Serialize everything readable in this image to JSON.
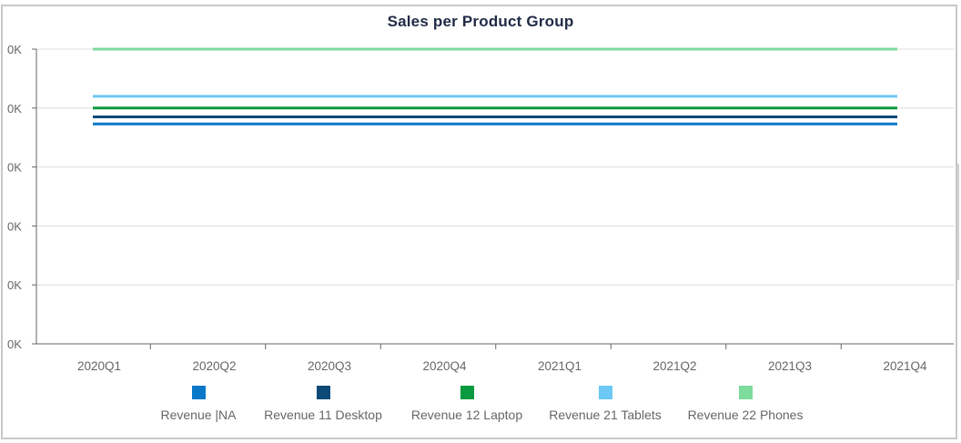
{
  "chart_data": {
    "type": "line",
    "title": "Sales per Product Group",
    "xlabel": "",
    "ylabel": "",
    "categories": [
      "2020Q1",
      "2020Q2",
      "2020Q3",
      "2020Q4",
      "2021Q1",
      "2021Q2",
      "2021Q3",
      "2021Q4"
    ],
    "y_tick_labels": [
      "0K",
      "0K",
      "0K",
      "0K",
      "0K",
      "0K"
    ],
    "ylim": [
      0,
      5
    ],
    "grid": true,
    "legend_position": "bottom",
    "series": [
      {
        "name": "Revenue |NA",
        "color": "#0a78c8",
        "values": [
          3.73,
          3.73,
          3.73,
          3.73,
          3.73,
          3.73,
          3.73,
          3.73
        ]
      },
      {
        "name": "Revenue 11 Desktop",
        "color": "#0d4a78",
        "values": [
          3.85,
          3.85,
          3.85,
          3.85,
          3.85,
          3.85,
          3.85,
          3.85
        ]
      },
      {
        "name": "Revenue 12 Laptop",
        "color": "#0a9a40",
        "values": [
          4.0,
          4.0,
          4.0,
          4.0,
          4.0,
          4.0,
          4.0,
          4.0
        ]
      },
      {
        "name": "Revenue 21 Tablets",
        "color": "#6cc8f5",
        "values": [
          4.2,
          4.2,
          4.2,
          4.2,
          4.2,
          4.2,
          4.2,
          4.2
        ]
      },
      {
        "name": "Revenue 22 Phones",
        "color": "#7ddb9c",
        "values": [
          5.0,
          5.0,
          5.0,
          5.0,
          5.0,
          5.0,
          5.0,
          5.0
        ]
      }
    ]
  }
}
